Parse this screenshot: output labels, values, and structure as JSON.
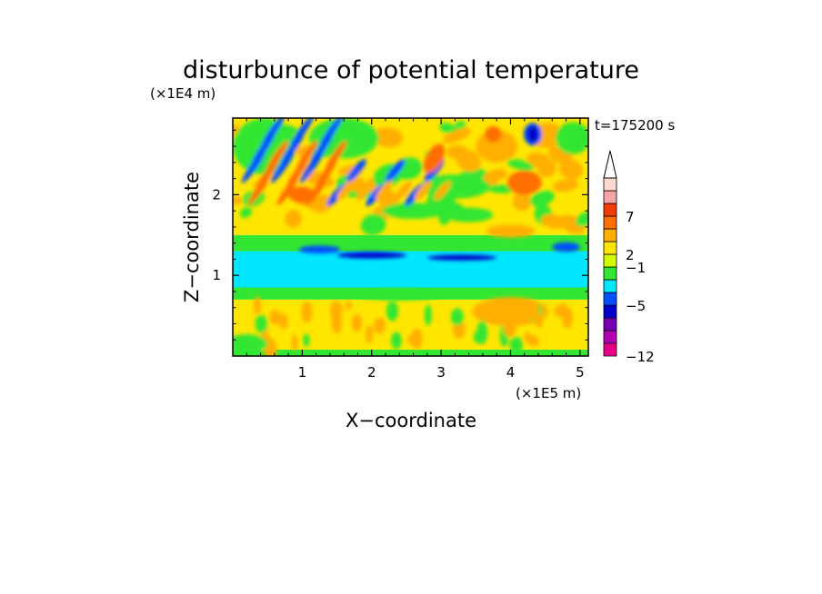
{
  "chart_data": {
    "type": "heatmap",
    "title": "disturbunce of potential temperature",
    "xlabel": "X−coordinate",
    "ylabel": "Z−coordinate",
    "x_scale_label": "(×1E5 m)",
    "y_scale_label": "(×1E4 m)",
    "time_label": "t=175200 s",
    "xlim": [
      0,
      5.12
    ],
    "ylim": [
      0,
      2.95
    ],
    "x_ticks": [
      "1",
      "2",
      "3",
      "4",
      "5"
    ],
    "y_ticks": [
      "1",
      "2"
    ],
    "colorbar": {
      "tick_labels": [
        "7",
        "2",
        "−1",
        "−5",
        "−12"
      ],
      "levels": [
        -12,
        -5,
        -1,
        2,
        7
      ],
      "colors": [
        "#e60087",
        "#b400b4",
        "#7800b4",
        "#0000c8",
        "#0050ff",
        "#00e6ff",
        "#32e632",
        "#d2ff00",
        "#ffe600",
        "#ffaf00",
        "#ff6e00",
        "#f03c00",
        "#f5a5a5",
        "#ffd7d2"
      ],
      "extend_top": true
    },
    "field_bands": [
      {
        "z_range": [
          0.0,
          0.08
        ],
        "class": "green"
      },
      {
        "z_range": [
          0.08,
          0.7
        ],
        "class": "yellow"
      },
      {
        "z_range": [
          0.7,
          0.85
        ],
        "class": "green"
      },
      {
        "z_range": [
          0.85,
          1.3
        ],
        "class": "cyan"
      },
      {
        "z_range": [
          1.3,
          1.5
        ],
        "class": "green"
      },
      {
        "z_range": [
          1.5,
          2.95
        ],
        "class": "yellow"
      }
    ],
    "features": [
      {
        "type": "negative-anomaly",
        "x": 4.32,
        "z": 2.75,
        "level": "dark-blue"
      },
      {
        "type": "negative-anomaly-band",
        "x": [
          0.9,
          3.9
        ],
        "z": 1.28,
        "level": "dark-blue"
      },
      {
        "type": "positive-anomaly",
        "x": 4.0,
        "z": 0.55,
        "level": "orange"
      },
      {
        "type": "positive-anomaly",
        "x": 3.8,
        "z": 2.6,
        "level": "orange"
      },
      {
        "type": "wave-packet",
        "x": [
          0.2,
          1.4
        ],
        "z": [
          1.6,
          2.8
        ],
        "level": "blue-orange"
      }
    ]
  }
}
